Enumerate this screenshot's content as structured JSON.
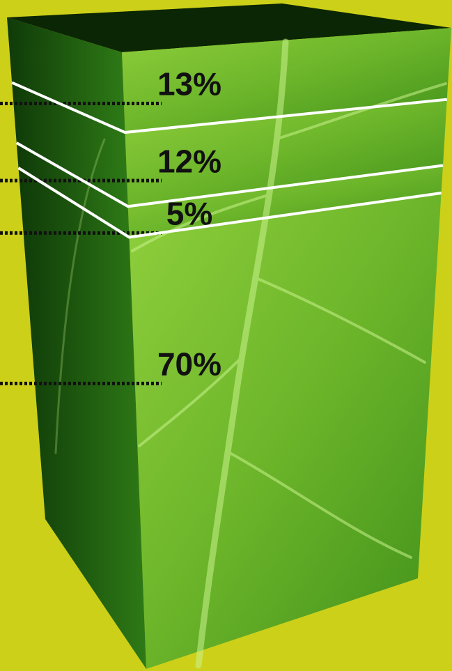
{
  "chart_data": {
    "type": "stacked_box",
    "values": [
      13,
      12,
      5,
      70
    ],
    "value_labels": [
      "13%",
      "12%",
      "5%",
      "70%"
    ]
  }
}
